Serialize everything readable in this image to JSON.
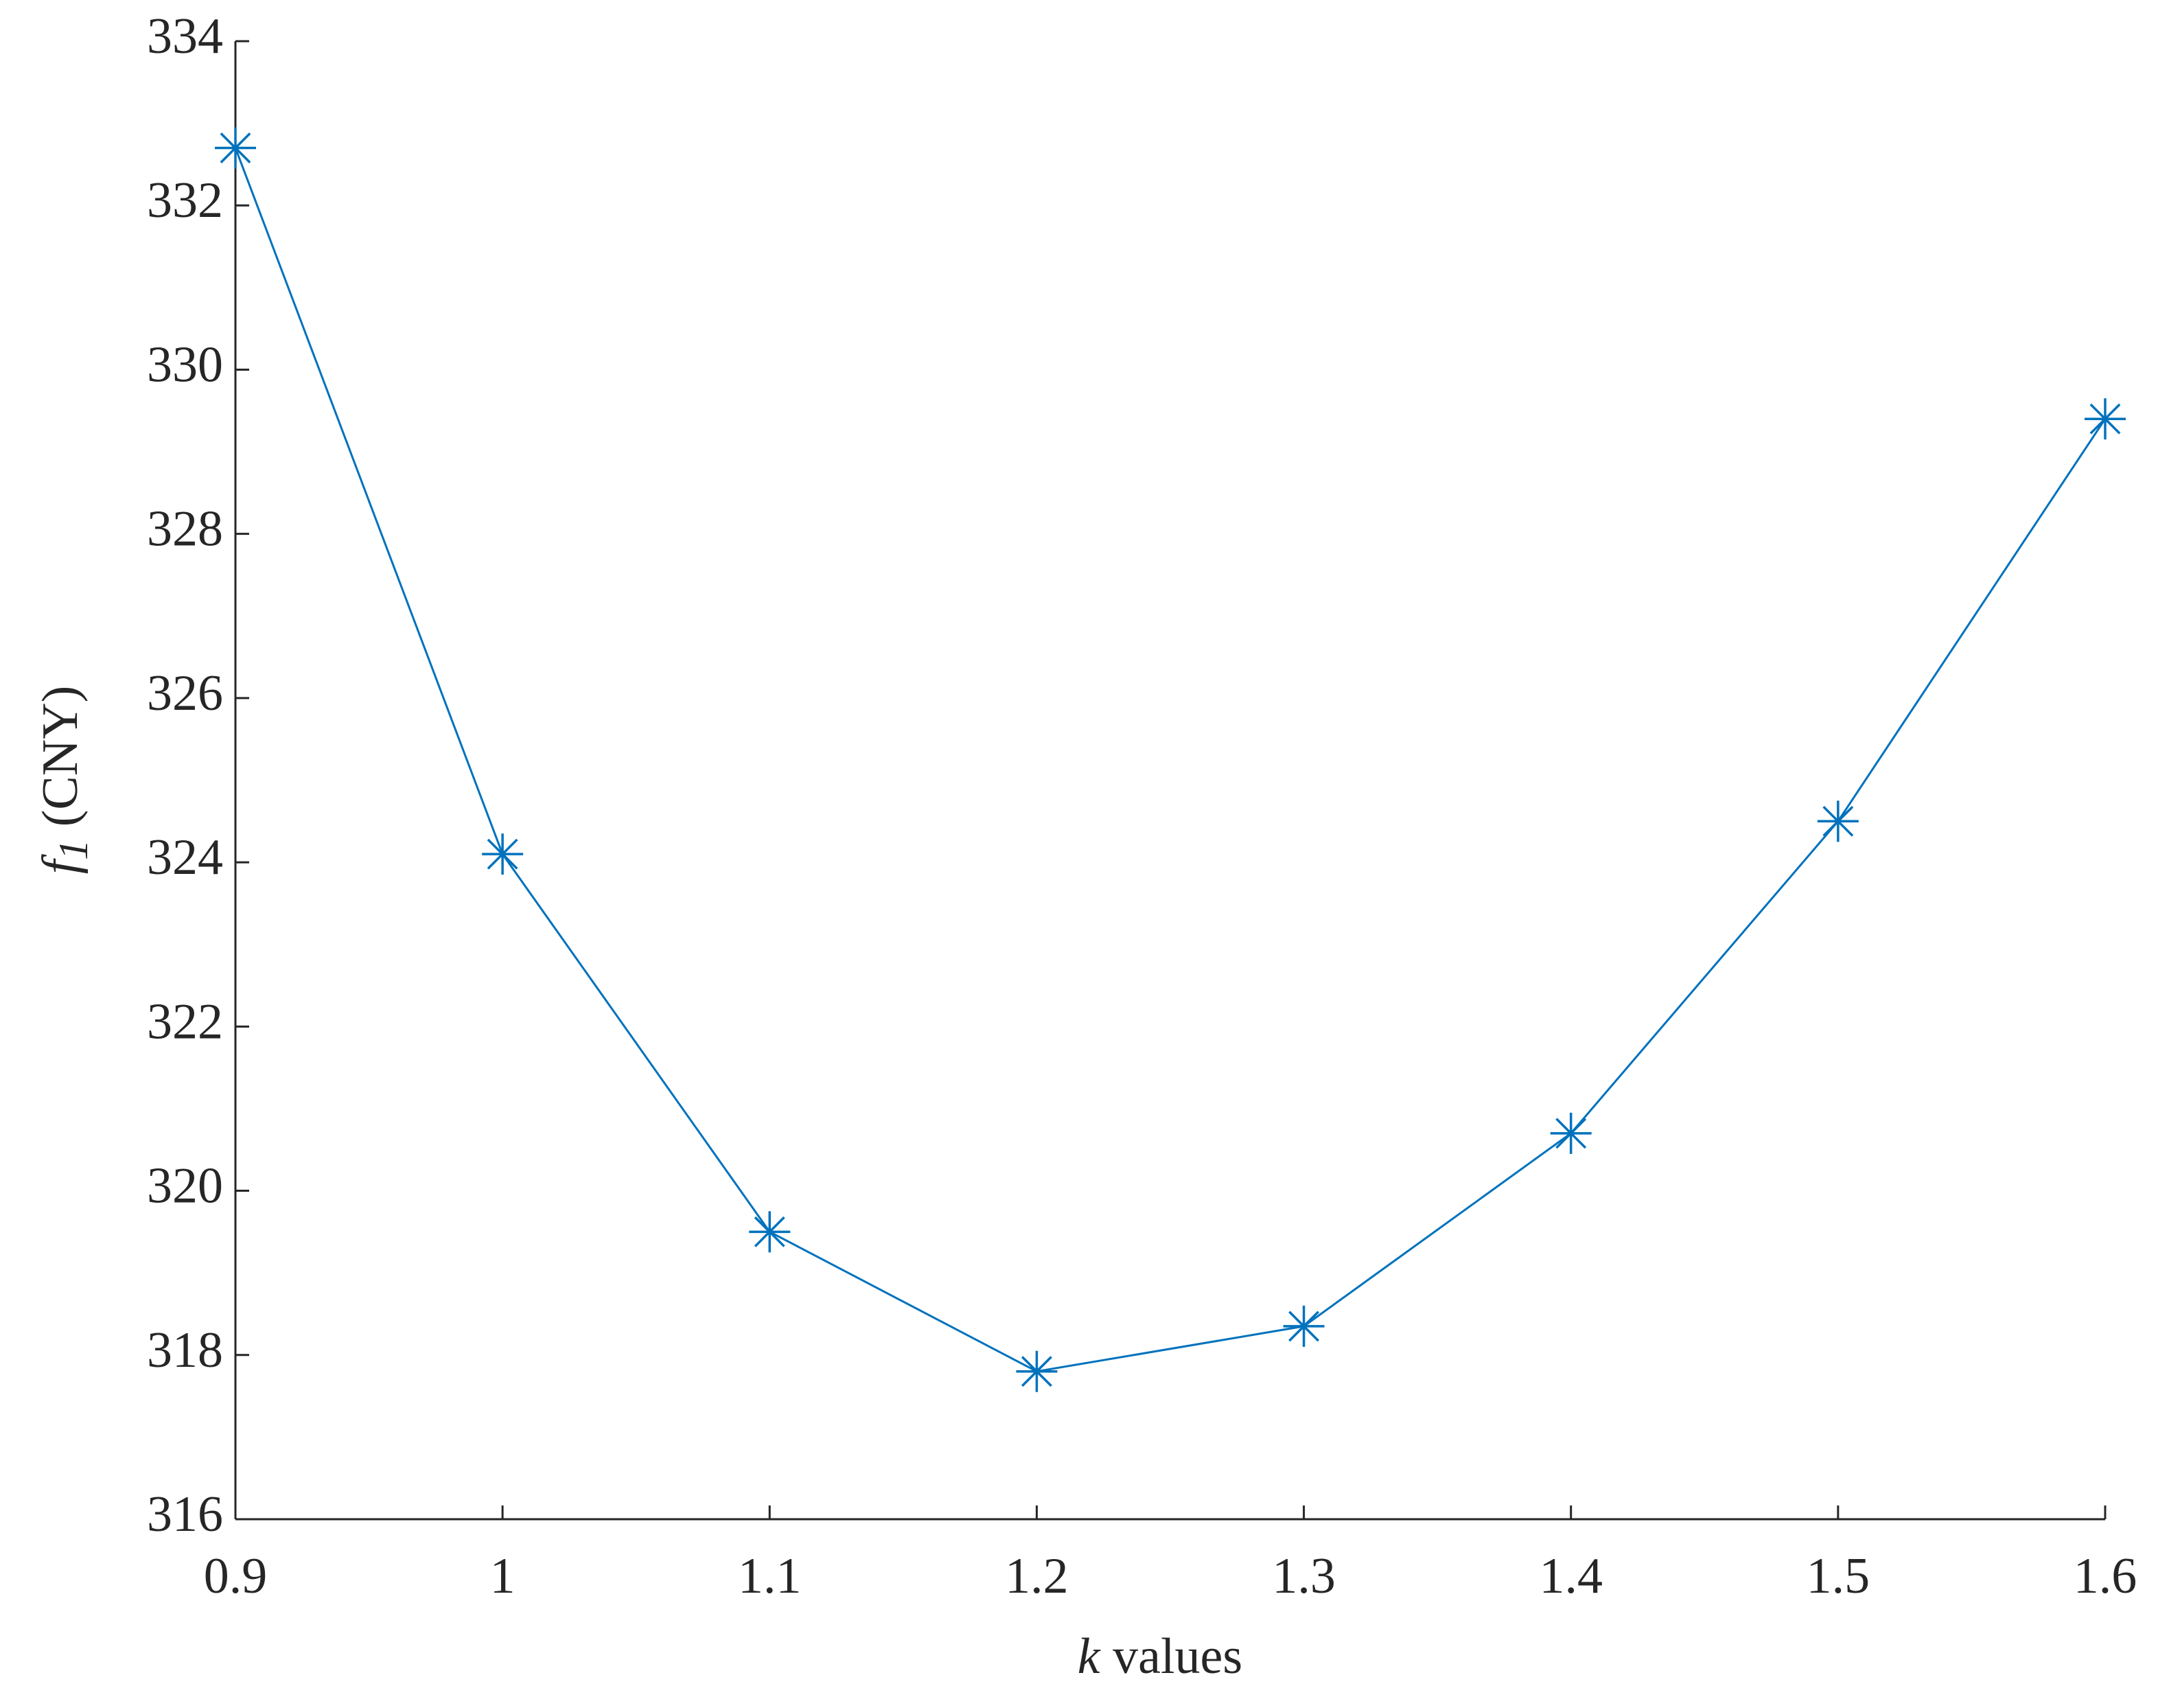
{
  "chart_data": {
    "type": "line",
    "xlabel": {
      "symbol": "k",
      "text": "values"
    },
    "ylabel": {
      "symbol": "f",
      "subscript": "1",
      "unit": "(CNY)"
    },
    "x": [
      0.9,
      1.0,
      1.1,
      1.2,
      1.3,
      1.4,
      1.5,
      1.6
    ],
    "series": [
      {
        "color": "#0072bd",
        "marker": "asterisk",
        "values": [
          332.7,
          324.1,
          319.5,
          317.8,
          318.35,
          320.7,
          324.5,
          329.4
        ]
      }
    ],
    "xlim": [
      0.9,
      1.6
    ],
    "xticks": [
      0.9,
      1,
      1.1,
      1.2,
      1.3,
      1.4,
      1.5,
      1.6
    ],
    "ylim": [
      316,
      334
    ],
    "yticks": [
      316,
      318,
      320,
      322,
      324,
      326,
      328,
      330,
      332,
      334
    ],
    "grid": false
  }
}
